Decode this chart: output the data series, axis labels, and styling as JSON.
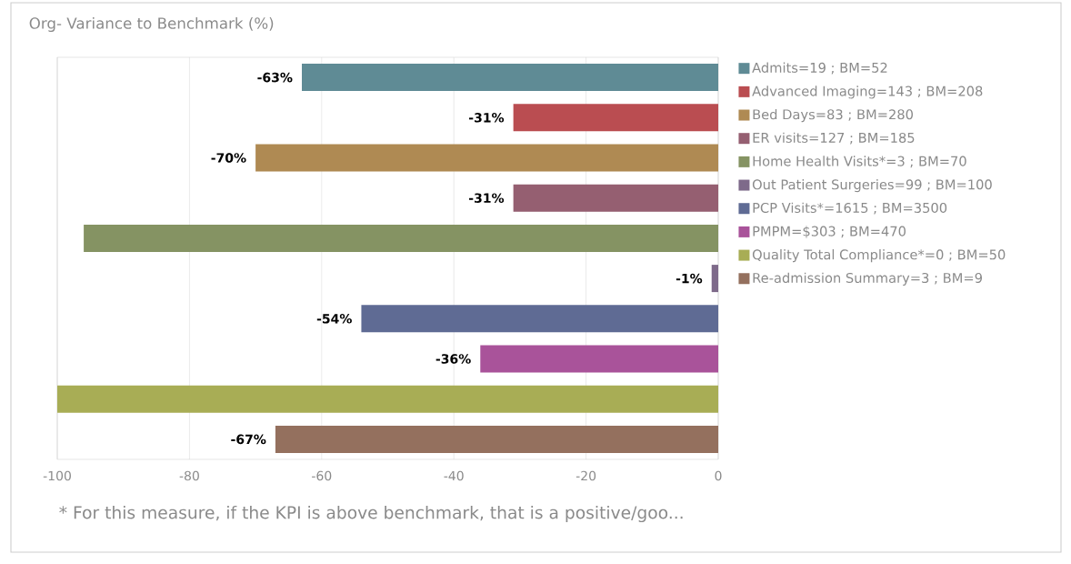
{
  "chart_data": {
    "type": "bar",
    "orientation": "horizontal",
    "title": "Org- Variance to Benchmark (%)",
    "categories": [
      null,
      null,
      null,
      null,
      null,
      null,
      null,
      null,
      null,
      null
    ],
    "series": [
      {
        "name": "Admits=19 ; BM=52",
        "color": "#5f8b95",
        "values": [
          -63,
          null,
          null,
          null,
          null,
          null,
          null,
          null,
          null,
          null
        ],
        "value_labels": [
          "-63%",
          null,
          null,
          null,
          null,
          null,
          null,
          null,
          null,
          null
        ]
      },
      {
        "name": "Advanced Imaging=143 ; BM=208",
        "color": "#ba4d51",
        "values": [
          null,
          -31,
          null,
          null,
          null,
          null,
          null,
          null,
          null,
          null
        ],
        "value_labels": [
          null,
          "-31%",
          null,
          null,
          null,
          null,
          null,
          null,
          null,
          null
        ]
      },
      {
        "name": "Bed Days=83 ; BM=280",
        "color": "#af8a53",
        "values": [
          null,
          null,
          -70,
          null,
          null,
          null,
          null,
          null,
          null,
          null
        ],
        "value_labels": [
          null,
          null,
          "-70%",
          null,
          null,
          null,
          null,
          null,
          null,
          null
        ]
      },
      {
        "name": "ER visits=127 ; BM=185",
        "color": "#955f71",
        "values": [
          null,
          null,
          null,
          -31,
          null,
          null,
          null,
          null,
          null,
          null
        ],
        "value_labels": [
          null,
          null,
          null,
          "-31%",
          null,
          null,
          null,
          null,
          null,
          null
        ]
      },
      {
        "name": "Home Health Visits*=3 ; BM=70",
        "color": "#859363",
        "values": [
          null,
          null,
          null,
          null,
          -96,
          null,
          null,
          null,
          null,
          null
        ]
      },
      {
        "name": "Out Patient Surgeries=99 ; BM=100",
        "color": "#7e6a8a",
        "values": [
          null,
          null,
          null,
          null,
          null,
          -1,
          null,
          null,
          null,
          null
        ],
        "value_labels": [
          null,
          null,
          null,
          null,
          null,
          "-1%",
          null,
          null,
          null,
          null
        ]
      },
      {
        "name": "PCP Visits*=1615 ; BM=3500",
        "color": "#5f6b94",
        "values": [
          null,
          null,
          null,
          null,
          null,
          null,
          -54,
          null,
          null,
          null
        ],
        "value_labels": [
          null,
          null,
          null,
          null,
          null,
          null,
          "-54%",
          null,
          null,
          null
        ]
      },
      {
        "name": "PMPM=$303 ; BM=470",
        "color": "#a9539a",
        "values": [
          null,
          null,
          null,
          null,
          null,
          null,
          null,
          -36,
          null,
          null
        ],
        "value_labels": [
          null,
          null,
          null,
          null,
          null,
          null,
          null,
          "-36%",
          null,
          null
        ]
      },
      {
        "name": "Quality Total Compliance*=0 ; BM=50",
        "color": "#a8ad55",
        "values": [
          null,
          null,
          null,
          null,
          null,
          null,
          null,
          null,
          -100,
          null
        ]
      },
      {
        "name": "Re-admission Summary=3 ; BM=9",
        "color": "#94705e",
        "values": [
          null,
          null,
          null,
          null,
          null,
          null,
          null,
          null,
          null,
          -67
        ],
        "value_labels": [
          null,
          null,
          null,
          null,
          null,
          null,
          null,
          null,
          null,
          "-67%"
        ]
      }
    ],
    "xlim": [
      -100,
      0
    ],
    "xticks": [
      -100,
      -80,
      -60,
      -40,
      -20,
      0
    ],
    "grid": "x",
    "legend": "right",
    "annotations": [
      "* For this measure, if the KPI is above benchmark, that is a positive/goo..."
    ]
  }
}
